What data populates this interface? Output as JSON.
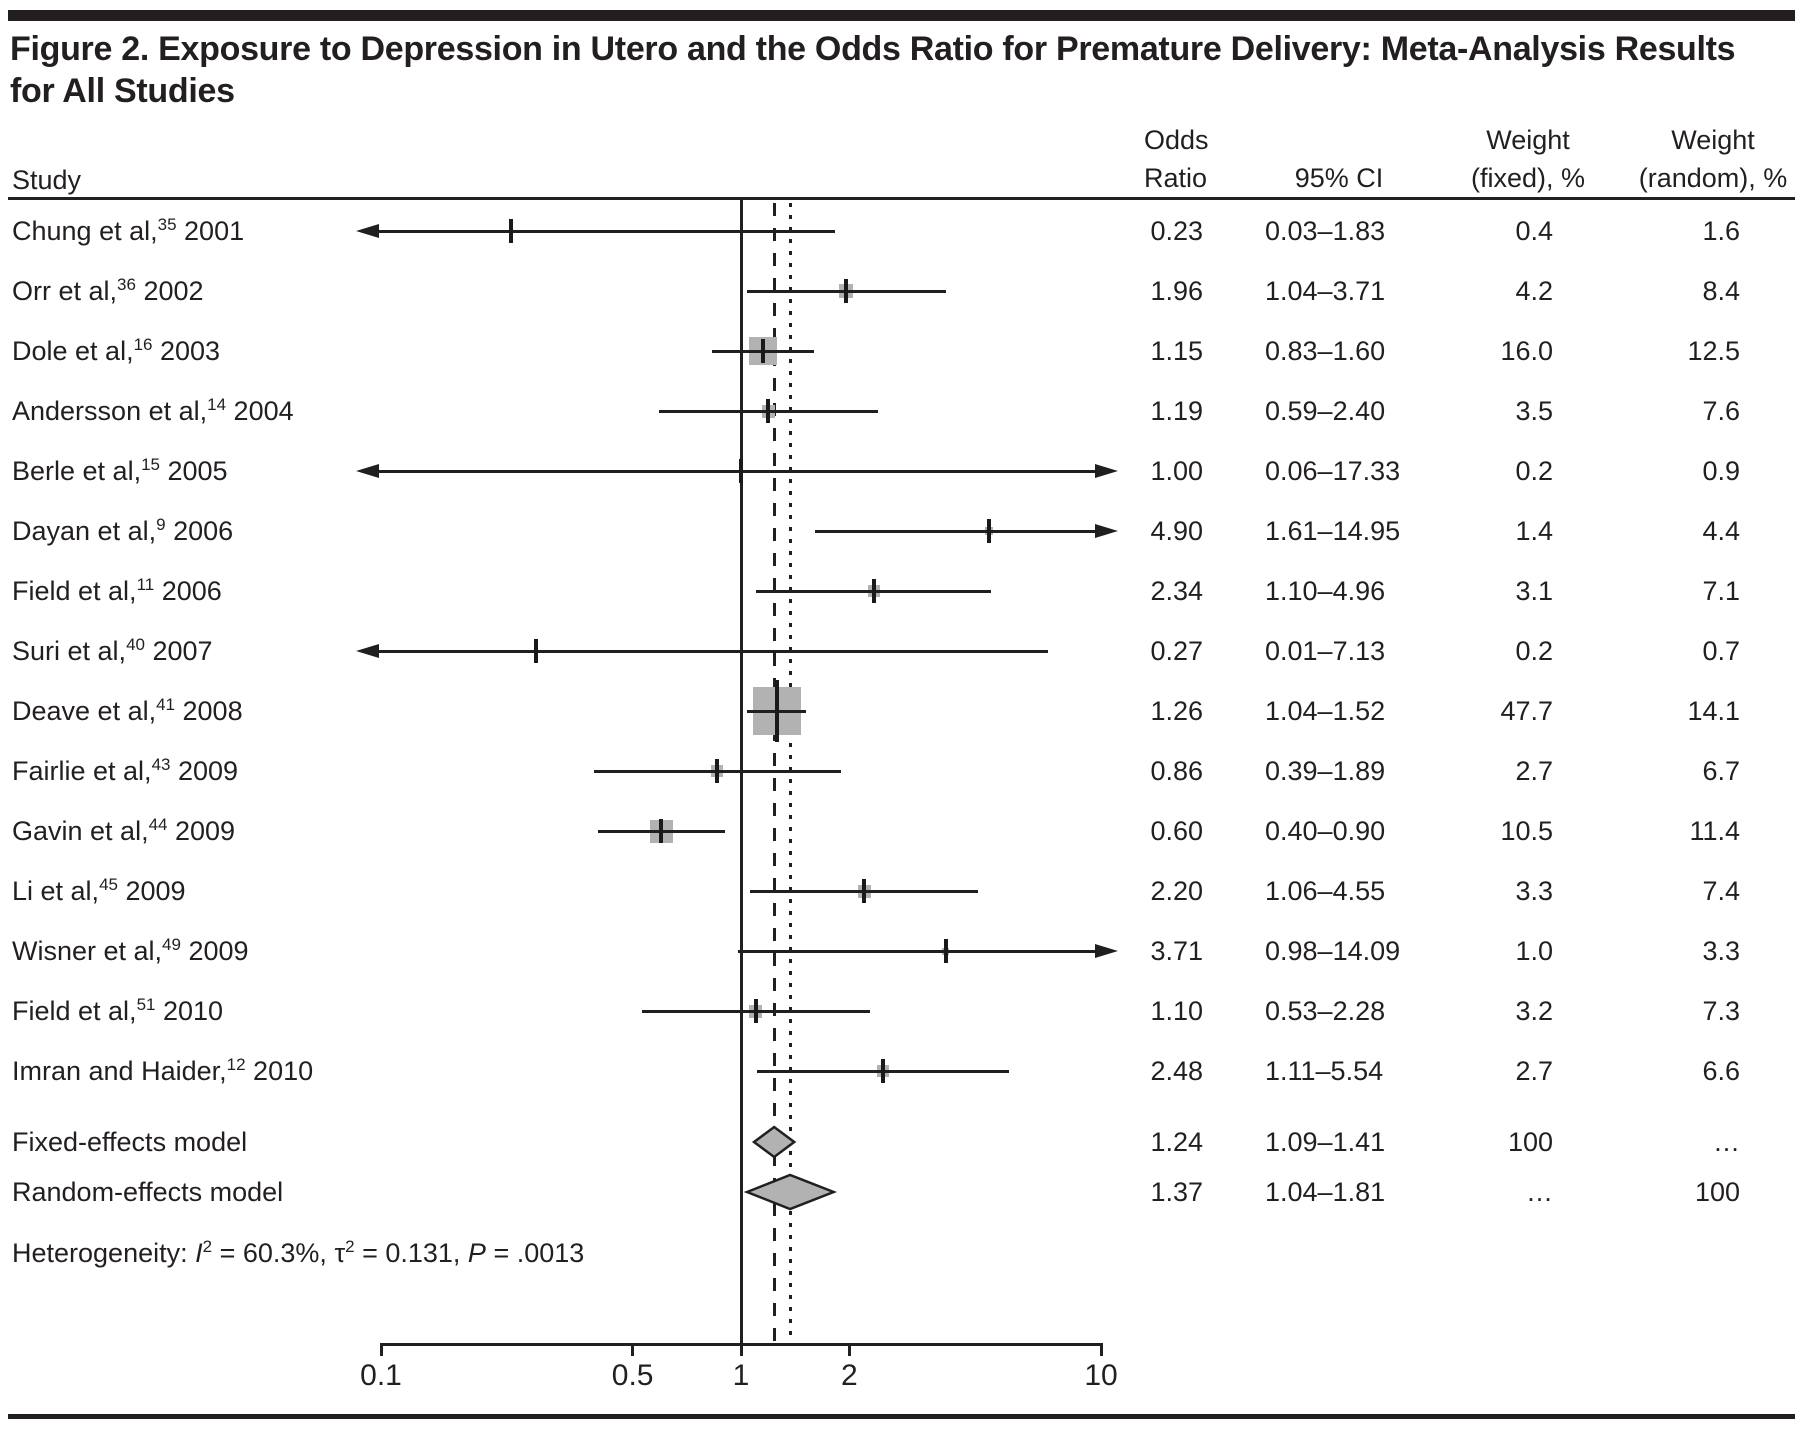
{
  "figure": {
    "title_line1": "Figure 2. Exposure to Depression in Utero and the Odds Ratio for Premature Delivery: Meta-Analysis Results",
    "title_line2": "for All Studies"
  },
  "table": {
    "study_header": "Study",
    "col_headers": {
      "odds_line1": "Odds",
      "odds_line2": "Ratio",
      "ci": "95% CI",
      "weight_fixed_line1": "Weight",
      "weight_fixed_line2": "(fixed), %",
      "weight_random_line1": "Weight",
      "weight_random_line2": "(random), %"
    }
  },
  "chart_data": {
    "type": "forest",
    "x_axis": {
      "scale": "log10",
      "range": [
        0.1,
        10
      ],
      "ticks": [
        0.1,
        0.5,
        1,
        2,
        10
      ],
      "tick_labels": [
        "0.1",
        "0.5",
        "1",
        "2",
        "10"
      ],
      "reference_line": 1,
      "fixed_effect_line": 1.24,
      "random_effect_line": 1.37
    },
    "studies": [
      {
        "label": "Chung et al,",
        "ref": "35",
        "year": "2001",
        "or": 0.23,
        "lo": 0.03,
        "hi": 1.83,
        "or_text": "0.23",
        "ci_text": "0.03–1.83",
        "wf": 0.4,
        "wf_text": "0.4",
        "wr_text": "1.6",
        "clamp_lo": true,
        "clamp_hi": false
      },
      {
        "label": "Orr et al,",
        "ref": "36",
        "year": "2002",
        "or": 1.96,
        "lo": 1.04,
        "hi": 3.71,
        "or_text": "1.96",
        "ci_text": "1.04–3.71",
        "wf": 4.2,
        "wf_text": "4.2",
        "wr_text": "8.4",
        "clamp_lo": false,
        "clamp_hi": false
      },
      {
        "label": "Dole et al,",
        "ref": "16",
        "year": "2003",
        "or": 1.15,
        "lo": 0.83,
        "hi": 1.6,
        "or_text": "1.15",
        "ci_text": "0.83–1.60",
        "wf": 16.0,
        "wf_text": "16.0",
        "wr_text": "12.5",
        "clamp_lo": false,
        "clamp_hi": false
      },
      {
        "label": "Andersson et al,",
        "ref": "14",
        "year": "2004",
        "or": 1.19,
        "lo": 0.59,
        "hi": 2.4,
        "or_text": "1.19",
        "ci_text": "0.59–2.40",
        "wf": 3.5,
        "wf_text": "3.5",
        "wr_text": "7.6",
        "clamp_lo": false,
        "clamp_hi": false
      },
      {
        "label": "Berle et al,",
        "ref": "15",
        "year": "2005",
        "or": 1.0,
        "lo": 0.06,
        "hi": 17.33,
        "or_text": "1.00",
        "ci_text": "0.06–17.33",
        "wf": 0.2,
        "wf_text": "0.2",
        "wr_text": "0.9",
        "clamp_lo": true,
        "clamp_hi": true
      },
      {
        "label": "Dayan et al,",
        "ref": "9",
        "year": "2006",
        "or": 4.9,
        "lo": 1.61,
        "hi": 14.95,
        "or_text": "4.90",
        "ci_text": "1.61–14.95",
        "wf": 1.4,
        "wf_text": "1.4",
        "wr_text": "4.4",
        "clamp_lo": false,
        "clamp_hi": true
      },
      {
        "label": "Field et al,",
        "ref": "11",
        "year": "2006",
        "or": 2.34,
        "lo": 1.1,
        "hi": 4.96,
        "or_text": "2.34",
        "ci_text": "1.10–4.96",
        "wf": 3.1,
        "wf_text": "3.1",
        "wr_text": "7.1",
        "clamp_lo": false,
        "clamp_hi": false
      },
      {
        "label": "Suri et al,",
        "ref": "40",
        "year": "2007",
        "or": 0.27,
        "lo": 0.01,
        "hi": 7.13,
        "or_text": "0.27",
        "ci_text": "0.01–7.13",
        "wf": 0.2,
        "wf_text": "0.2",
        "wr_text": "0.7",
        "clamp_lo": true,
        "clamp_hi": false
      },
      {
        "label": "Deave et al,",
        "ref": "41",
        "year": "2008",
        "or": 1.26,
        "lo": 1.04,
        "hi": 1.52,
        "or_text": "1.26",
        "ci_text": "1.04–1.52",
        "wf": 47.7,
        "wf_text": "47.7",
        "wr_text": "14.1",
        "clamp_lo": false,
        "clamp_hi": false
      },
      {
        "label": "Fairlie et al,",
        "ref": "43",
        "year": "2009",
        "or": 0.86,
        "lo": 0.39,
        "hi": 1.89,
        "or_text": "0.86",
        "ci_text": "0.39–1.89",
        "wf": 2.7,
        "wf_text": "2.7",
        "wr_text": "6.7",
        "clamp_lo": false,
        "clamp_hi": false
      },
      {
        "label": "Gavin et al,",
        "ref": "44",
        "year": "2009",
        "or": 0.6,
        "lo": 0.4,
        "hi": 0.9,
        "or_text": "0.60",
        "ci_text": "0.40–0.90",
        "wf": 10.5,
        "wf_text": "10.5",
        "wr_text": "11.4",
        "clamp_lo": false,
        "clamp_hi": false
      },
      {
        "label": "Li et al,",
        "ref": "45",
        "year": "2009",
        "or": 2.2,
        "lo": 1.06,
        "hi": 4.55,
        "or_text": "2.20",
        "ci_text": "1.06–4.55",
        "wf": 3.3,
        "wf_text": "3.3",
        "wr_text": "7.4",
        "clamp_lo": false,
        "clamp_hi": false
      },
      {
        "label": "Wisner et al,",
        "ref": "49",
        "year": "2009",
        "or": 3.71,
        "lo": 0.98,
        "hi": 14.09,
        "or_text": "3.71",
        "ci_text": "0.98–14.09",
        "wf": 1.0,
        "wf_text": "1.0",
        "wr_text": "3.3",
        "clamp_lo": false,
        "clamp_hi": true
      },
      {
        "label": "Field et al,",
        "ref": "51",
        "year": "2010",
        "or": 1.1,
        "lo": 0.53,
        "hi": 2.28,
        "or_text": "1.10",
        "ci_text": "0.53–2.28",
        "wf": 3.2,
        "wf_text": "3.2",
        "wr_text": "7.3",
        "clamp_lo": false,
        "clamp_hi": false
      },
      {
        "label": "Imran and Haider,",
        "ref": "12",
        "year": "2010",
        "or": 2.48,
        "lo": 1.11,
        "hi": 5.54,
        "or_text": "2.48",
        "ci_text": "1.11–5.54",
        "wf": 2.7,
        "wf_text": "2.7",
        "wr_text": "6.6",
        "clamp_lo": false,
        "clamp_hi": false
      }
    ],
    "models": [
      {
        "label": "Fixed-effects model",
        "or": 1.24,
        "lo": 1.09,
        "hi": 1.41,
        "or_text": "1.24",
        "ci_text": "1.09–1.41",
        "wf_text": "100",
        "wr_text": "…",
        "half_h": 15
      },
      {
        "label": "Random-effects model",
        "or": 1.37,
        "lo": 1.04,
        "hi": 1.81,
        "or_text": "1.37",
        "ci_text": "1.04–1.81",
        "wf_text": "…",
        "wr_text": "100",
        "half_h": 17
      }
    ],
    "heterogeneity_parts": [
      {
        "t": "Heterogeneity: "
      },
      {
        "t": "I",
        "style": "italic"
      },
      {
        "t": "2",
        "style": "sup"
      },
      {
        "t": " = 60.3%, "
      },
      {
        "t": "τ"
      },
      {
        "t": "2",
        "style": "sup"
      },
      {
        "t": " = 0.131, "
      },
      {
        "t": "P",
        "style": "italic"
      },
      {
        "t": " = .0013"
      }
    ],
    "colors": {
      "ink": "#231f20",
      "marker_fill": "#b2b2b2",
      "diamond_fill": "#b2b2b2"
    }
  }
}
